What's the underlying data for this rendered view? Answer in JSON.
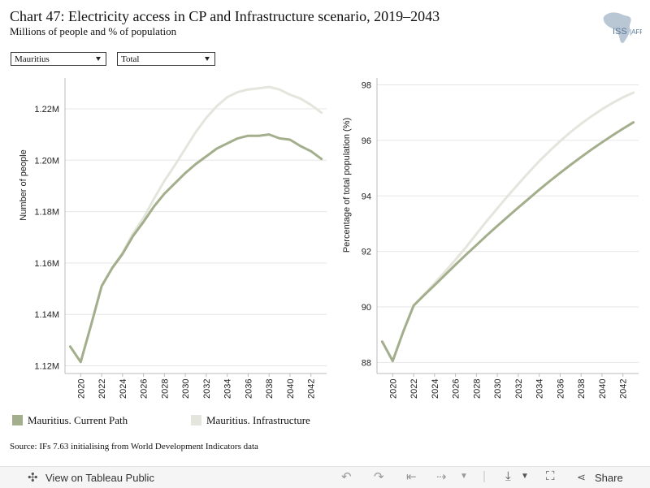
{
  "header": {
    "title": "Chart 47: Electricity access in CP and Infrastructure scenario, 2019–2043",
    "subtitle": "Millions of people and % of population",
    "logo_text": "ISS AFRICA"
  },
  "filters": {
    "country": "Mauritius",
    "measure": "Total"
  },
  "colors": {
    "current_path": "#a3ae8c",
    "infrastructure": "#e4e5dc",
    "grid": "#e6e6e6",
    "axis": "#bbbbbb"
  },
  "chart_data": [
    {
      "type": "line",
      "ylabel": "Number of people",
      "ylim": [
        1.117,
        1.232
      ],
      "yticks": [
        1.12,
        1.14,
        1.16,
        1.18,
        1.2,
        1.22
      ],
      "ytick_labels": [
        "1.12M",
        "1.14M",
        "1.16M",
        "1.18M",
        "1.20M",
        "1.22M"
      ],
      "xlim": [
        2018.5,
        2043.5
      ],
      "xticks": [
        2020,
        2022,
        2024,
        2026,
        2028,
        2030,
        2032,
        2034,
        2036,
        2038,
        2040,
        2042
      ],
      "x": [
        2019,
        2020,
        2021,
        2022,
        2023,
        2024,
        2025,
        2026,
        2027,
        2028,
        2029,
        2030,
        2031,
        2032,
        2033,
        2034,
        2035,
        2036,
        2037,
        2038,
        2039,
        2040,
        2041,
        2042,
        2043
      ],
      "series": [
        {
          "name": "Mauritius. Current Path",
          "values": [
            1.1275,
            1.1215,
            1.136,
            1.151,
            1.158,
            1.1635,
            1.1705,
            1.176,
            1.182,
            1.187,
            1.191,
            1.195,
            1.1985,
            1.2015,
            1.2045,
            1.2065,
            1.2085,
            1.2095,
            1.2095,
            1.21,
            1.2085,
            1.208,
            1.2055,
            1.2035,
            1.2005
          ]
        },
        {
          "name": "Mauritius. Infrastructure",
          "values": [
            1.1275,
            1.1215,
            1.136,
            1.151,
            1.158,
            1.164,
            1.1715,
            1.1775,
            1.185,
            1.192,
            1.198,
            1.2045,
            1.211,
            1.2165,
            1.221,
            1.2245,
            1.2265,
            1.2275,
            1.228,
            1.2285,
            1.2275,
            1.2255,
            1.224,
            1.2215,
            1.2185
          ]
        }
      ]
    },
    {
      "type": "line",
      "ylabel": "Percentage of total population (%)",
      "ylim": [
        87.6,
        98.25
      ],
      "yticks": [
        88,
        90,
        92,
        94,
        96,
        98
      ],
      "ytick_labels": [
        "88",
        "90",
        "92",
        "94",
        "96",
        "98"
      ],
      "xlim": [
        2018.5,
        2043.5
      ],
      "xticks": [
        2020,
        2022,
        2024,
        2026,
        2028,
        2030,
        2032,
        2034,
        2036,
        2038,
        2040,
        2042
      ],
      "x": [
        2019,
        2020,
        2021,
        2022,
        2023,
        2024,
        2025,
        2026,
        2027,
        2028,
        2029,
        2030,
        2031,
        2032,
        2033,
        2034,
        2035,
        2036,
        2037,
        2038,
        2039,
        2040,
        2041,
        2042,
        2043
      ],
      "series": [
        {
          "name": "Mauritius. Current Path",
          "values": [
            88.75,
            88.05,
            89.1,
            90.05,
            90.42,
            90.78,
            91.15,
            91.52,
            91.88,
            92.23,
            92.58,
            92.92,
            93.25,
            93.58,
            93.9,
            94.22,
            94.53,
            94.83,
            95.12,
            95.4,
            95.67,
            95.93,
            96.18,
            96.42,
            96.65
          ]
        },
        {
          "name": "Mauritius. Infrastructure",
          "values": [
            88.75,
            88.05,
            89.1,
            90.05,
            90.45,
            90.85,
            91.27,
            91.7,
            92.15,
            92.63,
            93.1,
            93.55,
            94.0,
            94.43,
            94.85,
            95.25,
            95.62,
            95.97,
            96.3,
            96.6,
            96.87,
            97.12,
            97.35,
            97.55,
            97.72
          ]
        }
      ]
    }
  ],
  "legend": {
    "current_path": "Mauritius. Current Path",
    "infrastructure": "Mauritius. Infrastructure"
  },
  "source": "Source: IFs 7.63 initialising from World Development Indicators data",
  "footer": {
    "view_label": "View on Tableau Public",
    "share_label": "Share"
  }
}
